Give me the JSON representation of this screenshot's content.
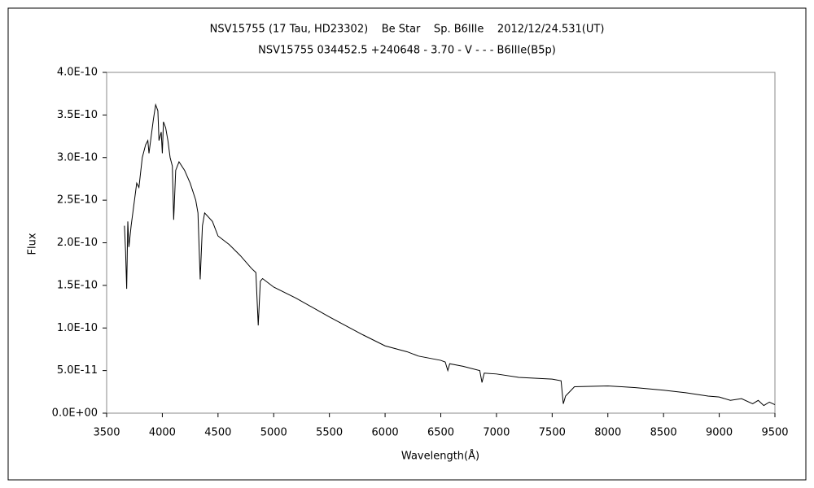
{
  "chart_data": {
    "type": "line",
    "title": "NSV15755 (17 Tau, HD23302)    Be Star    Sp. B6IIIe    2012/12/24.531(UT)",
    "subtitle": "NSV15755 034452.5 +240648 - 3.70 - V - - - B6IIIe(B5p)",
    "x_label": "Wavelength(Å)",
    "y_label": "Flux",
    "color": "#000000",
    "x": [
      3660,
      3670,
      3680,
      3690,
      3700,
      3720,
      3750,
      3770,
      3790,
      3820,
      3850,
      3870,
      3880,
      3900,
      3920,
      3940,
      3960,
      3970,
      3990,
      4000,
      4010,
      4030,
      4050,
      4070,
      4090,
      4102,
      4120,
      4150,
      4200,
      4250,
      4300,
      4320,
      4340,
      4360,
      4380,
      4450,
      4500,
      4600,
      4700,
      4800,
      4840,
      4861,
      4880,
      4900,
      5000,
      5200,
      5500,
      5800,
      6000,
      6200,
      6300,
      6500,
      6540,
      6563,
      6580,
      6700,
      6850,
      6870,
      6890,
      7000,
      7200,
      7500,
      7580,
      7600,
      7620,
      7700,
      8000,
      8250,
      8500,
      8700,
      8900,
      9000,
      9100,
      9200,
      9300,
      9350,
      9400,
      9450,
      9500
    ],
    "values": [
      2.2e-10,
      1.9e-10,
      1.46e-10,
      2.25e-10,
      1.95e-10,
      2.2e-10,
      2.5e-10,
      2.7e-10,
      2.65e-10,
      3e-10,
      3.15e-10,
      3.2e-10,
      3.05e-10,
      3.25e-10,
      3.45e-10,
      3.62e-10,
      3.55e-10,
      3.2e-10,
      3.3e-10,
      3.05e-10,
      3.42e-10,
      3.35e-10,
      3.2e-10,
      3e-10,
      2.9e-10,
      2.27e-10,
      2.85e-10,
      2.95e-10,
      2.85e-10,
      2.7e-10,
      2.5e-10,
      2.35e-10,
      1.57e-10,
      2.2e-10,
      2.35e-10,
      2.25e-10,
      2.08e-10,
      1.98e-10,
      1.85e-10,
      1.7e-10,
      1.65e-10,
      1.03e-10,
      1.55e-10,
      1.58e-10,
      1.48e-10,
      1.35e-10,
      1.13e-10,
      9.2e-11,
      7.9e-11,
      7.2e-11,
      6.7e-11,
      6.2e-11,
      6e-11,
      5e-11,
      5.8e-11,
      5.5e-11,
      5e-11,
      3.6e-11,
      4.7e-11,
      4.6e-11,
      4.2e-11,
      4e-11,
      3.8e-11,
      1.1e-11,
      2e-11,
      3.1e-11,
      3.2e-11,
      3e-11,
      2.7e-11,
      2.4e-11,
      2e-11,
      1.9e-11,
      1.5e-11,
      1.7e-11,
      1.1e-11,
      1.5e-11,
      9e-12,
      1.3e-11,
      1e-11
    ],
    "xlim": [
      3500,
      9500
    ],
    "xticks": [
      3500,
      4000,
      4500,
      5000,
      5500,
      6000,
      6500,
      7000,
      7500,
      8000,
      8500,
      9000,
      9500
    ],
    "ylim": [
      0,
      4e-10
    ],
    "yticks": [
      {
        "value": 0,
        "label": "0.0E+00"
      },
      {
        "value": 5e-11,
        "label": "5.0E-11"
      },
      {
        "value": 1e-10,
        "label": "1.0E-10"
      },
      {
        "value": 1.5e-10,
        "label": "1.5E-10"
      },
      {
        "value": 2e-10,
        "label": "2.0E-10"
      },
      {
        "value": 2.5e-10,
        "label": "2.5E-10"
      },
      {
        "value": 3e-10,
        "label": "3.0E-10"
      },
      {
        "value": 3.5e-10,
        "label": "3.5E-10"
      },
      {
        "value": 4e-10,
        "label": "4.0E-10"
      }
    ],
    "grid": false
  }
}
